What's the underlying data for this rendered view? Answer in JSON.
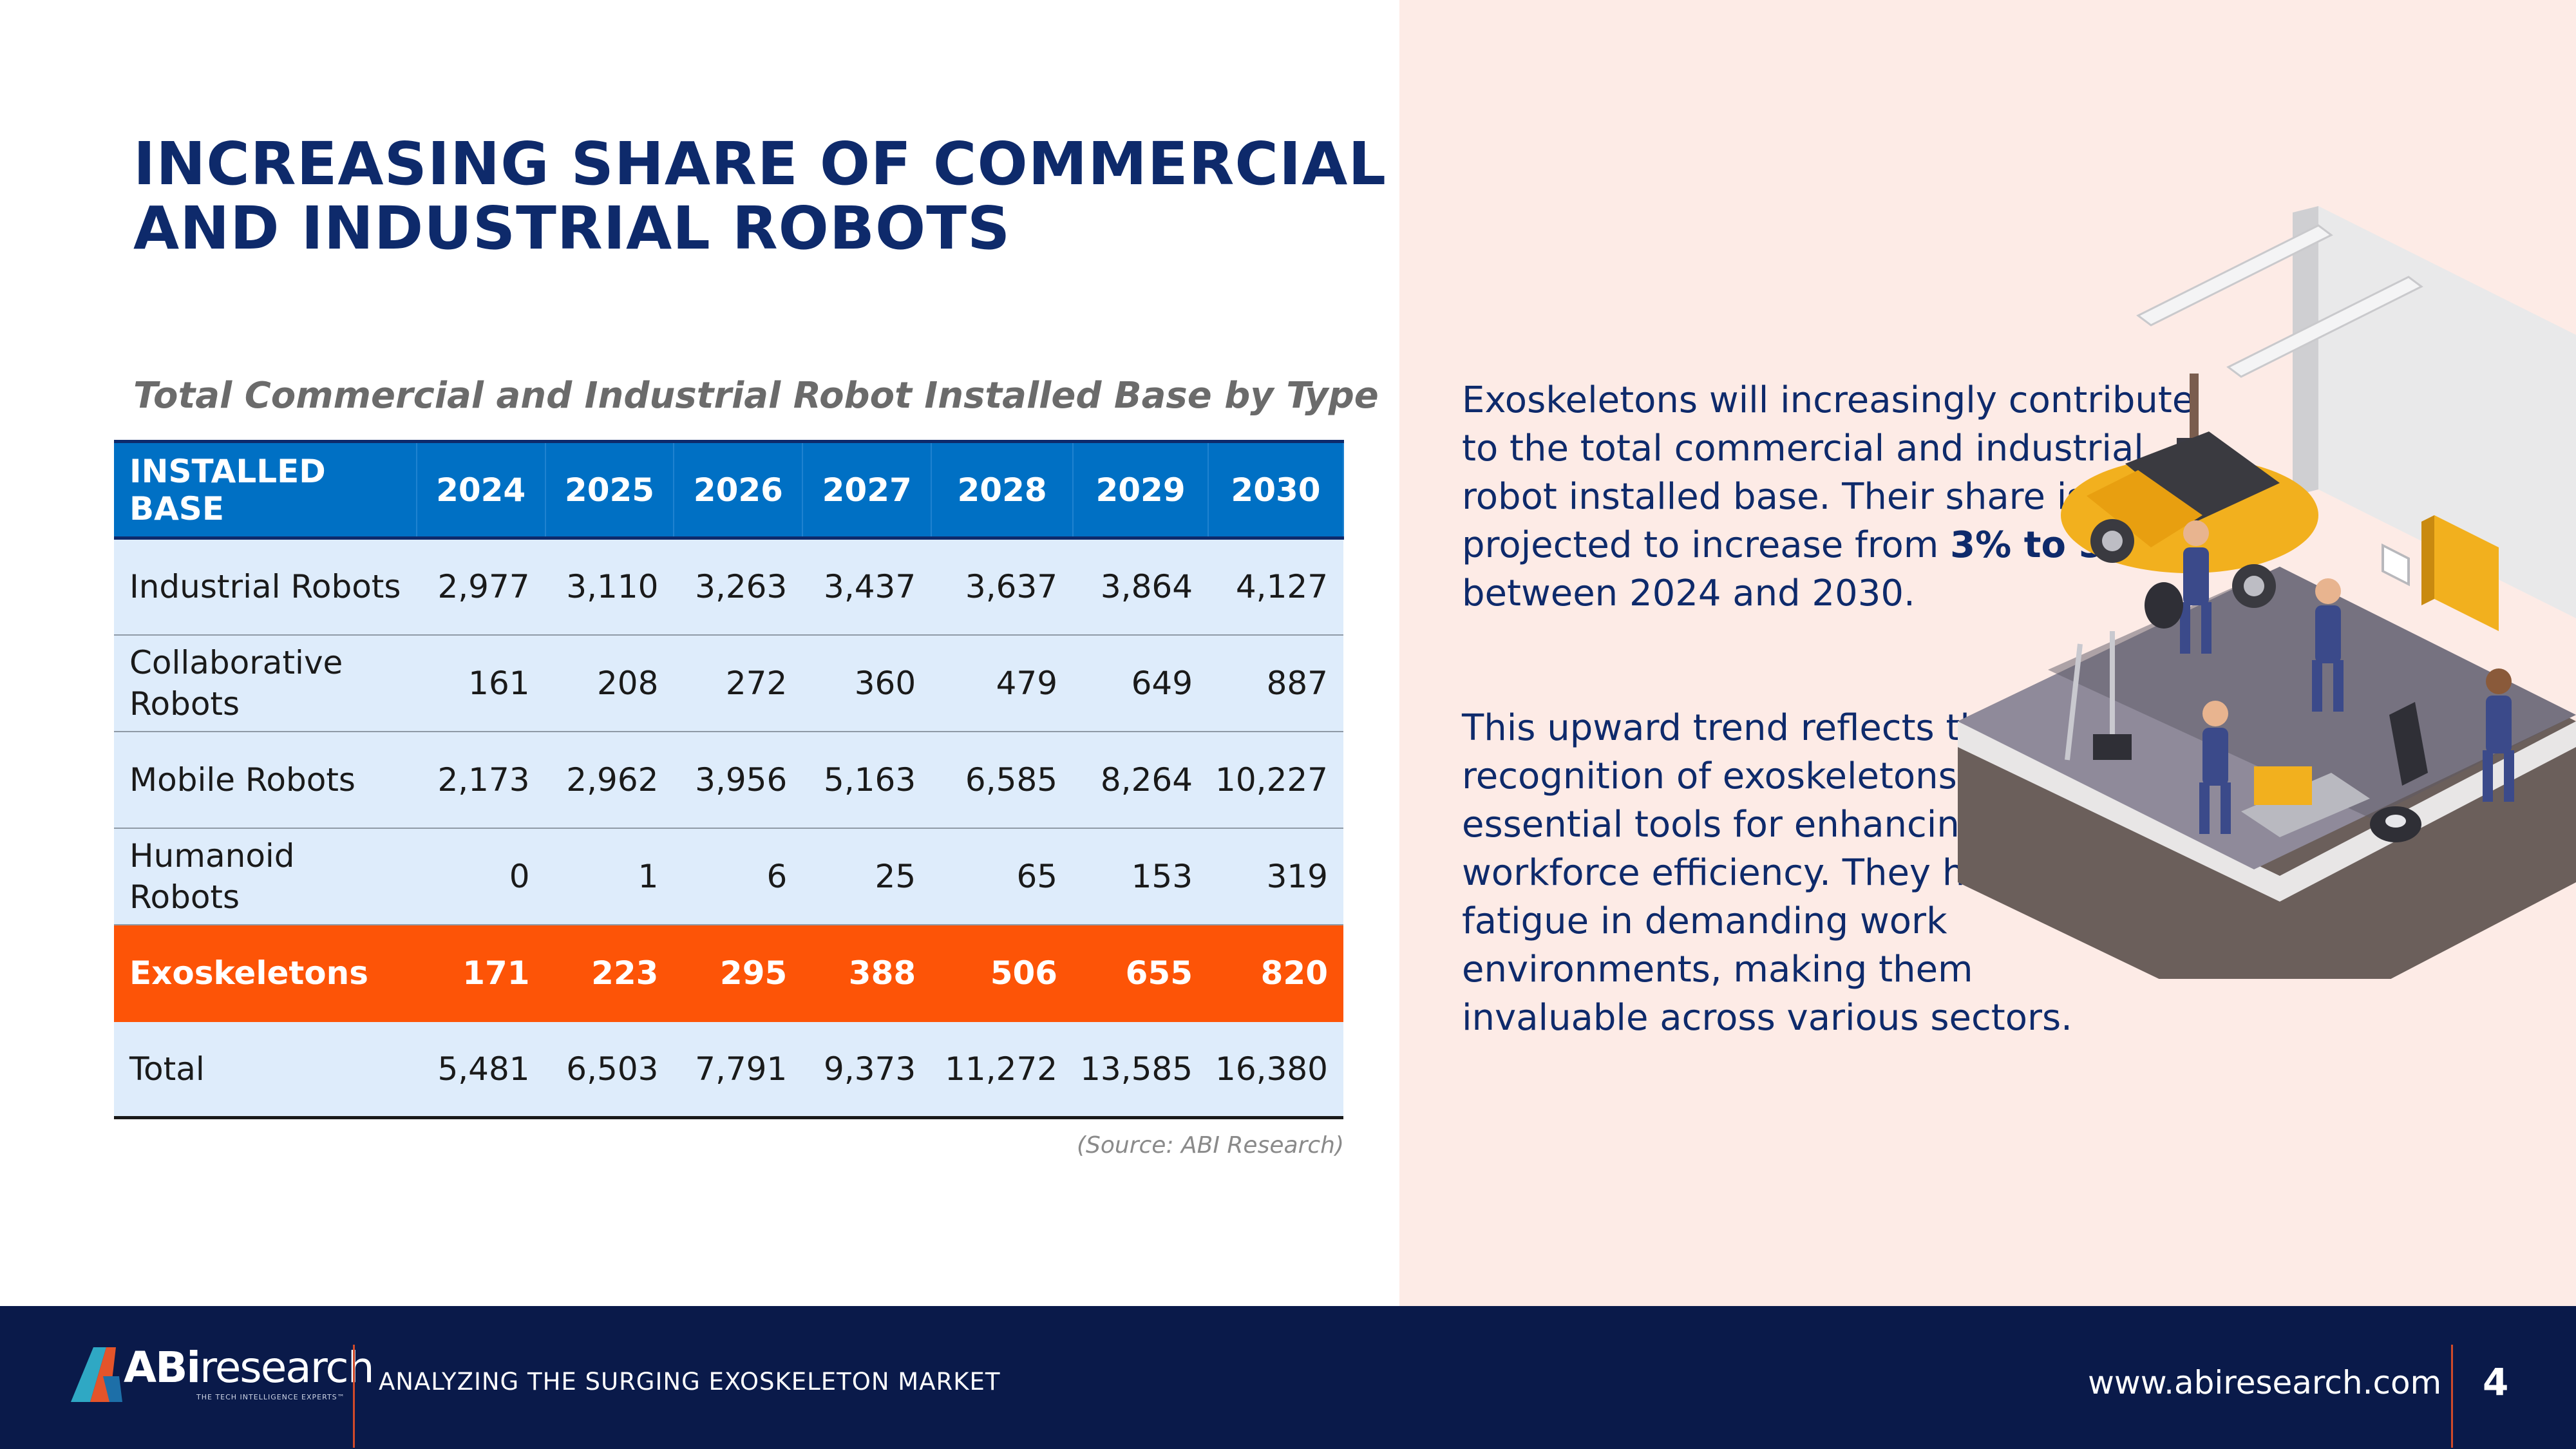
{
  "title": "INCREASING SHARE OF COMMERCIAL AND INDUSTRIAL ROBOTS",
  "table": {
    "caption": "Total Commercial and Industrial Robot Installed Base by Type",
    "headers": [
      "INSTALLED BASE",
      "2024",
      "2025",
      "2026",
      "2027",
      "2028",
      "2029",
      "2030"
    ],
    "rows": [
      {
        "label": "Industrial Robots",
        "values": [
          "2,977",
          "3,110",
          "3,263",
          "3,437",
          "3,637",
          "3,864",
          "4,127"
        ]
      },
      {
        "label": "Collaborative Robots",
        "values": [
          "161",
          "208",
          "272",
          "360",
          "479",
          "649",
          "887"
        ]
      },
      {
        "label": "Mobile Robots",
        "values": [
          "2,173",
          "2,962",
          "3,956",
          "5,163",
          "6,585",
          "8,264",
          "10,227"
        ]
      },
      {
        "label": "Humanoid Robots",
        "values": [
          "0",
          "1",
          "6",
          "25",
          "65",
          "153",
          "319"
        ]
      },
      {
        "label": "Exoskeletons",
        "values": [
          "171",
          "223",
          "295",
          "388",
          "506",
          "655",
          "820"
        ]
      },
      {
        "label": "Total",
        "values": [
          "5,481",
          "6,503",
          "7,791",
          "9,373",
          "11,272",
          "13,585",
          "16,380"
        ]
      }
    ],
    "source": "(Source: ABI Research)"
  },
  "paragraph1": {
    "before": "Exoskeletons will increasingly contribute to the total commercial and industrial robot installed base. Their share is projected to increase from ",
    "bold": "3% to 5%",
    "after": " between 2024 and 2030."
  },
  "paragraph2": "This upward trend reflects the growing recognition of exoskeletons as essential tools for enhancing workforce efficiency. They help reduce fatigue in demanding work environments, making them invaluable across various sectors.",
  "illustration_icon": "workshop-exoskeleton-illustration",
  "footer": {
    "logo_bold": "ABi",
    "logo_light": "research",
    "logo_tagline": "THE TECH INTELLIGENCE EXPERTS™",
    "title": "ANALYZING THE SURGING EXOSKELETON MARKET",
    "url": "www.abiresearch.com",
    "page": "4"
  },
  "colors": {
    "navy": "#0e2a6b",
    "header_blue": "#0070c4",
    "row_blue": "#deecfb",
    "highlight_orange": "#fd5407",
    "panel_pink": "#fdebe6",
    "footer_navy": "#0a1a4a"
  }
}
